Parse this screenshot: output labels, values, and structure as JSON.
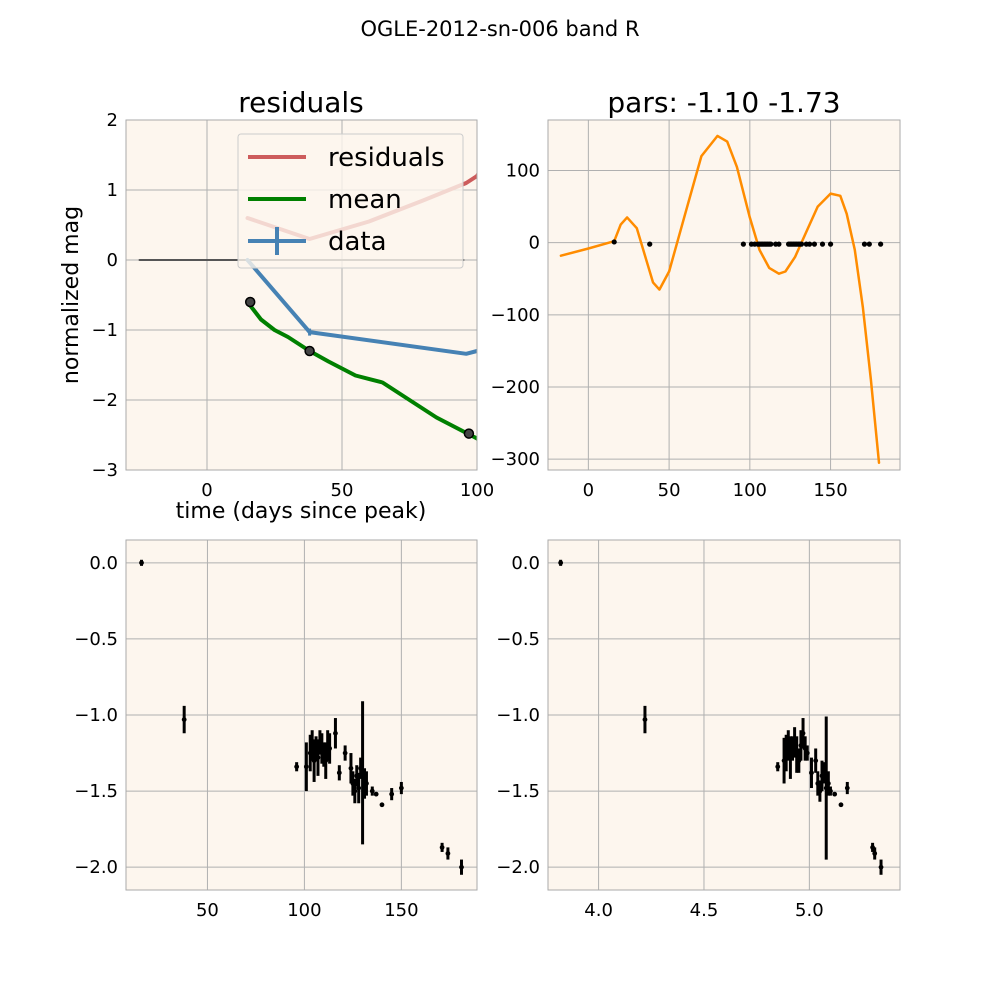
{
  "figure_title": "OGLE-2012-sn-006 band R",
  "colors": {
    "panel_bg": "#fdf6ee",
    "grid": "#b0b0b0",
    "spine": "#aaaaaa",
    "residuals": "#cd5c5c",
    "mean": "#008000",
    "data": "#4682b4",
    "fit": "#ff8c00",
    "zero_line": "#555555",
    "points": "#000000"
  },
  "chart_data": [
    {
      "type": "line",
      "title": "residuals",
      "xlabel": "time (days since peak)",
      "ylabel": "normalized mag",
      "xlim": [
        -30,
        100
      ],
      "ylim": [
        -3,
        2
      ],
      "xticks": [
        0,
        50,
        100
      ],
      "yticks": [
        -3,
        -2,
        -1,
        0,
        1,
        2
      ],
      "grid": true,
      "legend": {
        "position": "top-right",
        "entries": [
          "residuals",
          "mean",
          "data"
        ]
      },
      "series": [
        {
          "name": "residuals",
          "x": [
            15,
            38,
            60,
            80,
            96,
            100,
            105
          ],
          "y": [
            0.6,
            0.3,
            0.55,
            0.85,
            1.1,
            1.2,
            1.5
          ]
        },
        {
          "name": "mean",
          "x": [
            15,
            20,
            25,
            30,
            38,
            45,
            55,
            65,
            75,
            85,
            95,
            100,
            105
          ],
          "y": [
            -0.6,
            -0.85,
            -1.0,
            -1.1,
            -1.3,
            -1.45,
            -1.65,
            -1.75,
            -2.0,
            -2.25,
            -2.45,
            -2.55,
            -2.7
          ]
        },
        {
          "name": "data",
          "x": [
            15,
            38,
            96,
            105
          ],
          "y": [
            0.0,
            -1.03,
            -1.34,
            -1.25
          ],
          "yerr": [
            0.0,
            0.05,
            0.02,
            0.02
          ]
        }
      ],
      "zero_line": {
        "x": [
          -25,
          95
        ],
        "y": [
          0,
          0
        ]
      },
      "markers": [
        {
          "x": 16,
          "y": -0.6
        },
        {
          "x": 38,
          "y": -1.3
        },
        {
          "x": 97,
          "y": -2.48
        }
      ]
    },
    {
      "type": "line",
      "title": "pars: -1.10 -1.73",
      "xlim": [
        -25,
        193
      ],
      "ylim": [
        -315,
        170
      ],
      "xticks": [
        0,
        50,
        100,
        150
      ],
      "yticks": [
        -300,
        -200,
        -100,
        0,
        100
      ],
      "grid": true,
      "series": [
        {
          "name": "",
          "x": [
            -17,
            0,
            16,
            20,
            24,
            30,
            36,
            40,
            44,
            50,
            60,
            70,
            80,
            86,
            92,
            100,
            106,
            112,
            118,
            122,
            128,
            135,
            142,
            150,
            156,
            160,
            165,
            170,
            175,
            180
          ],
          "y": [
            -18,
            -8,
            2,
            25,
            35,
            20,
            -25,
            -55,
            -65,
            -40,
            40,
            120,
            148,
            140,
            105,
            35,
            -10,
            -35,
            -43,
            -40,
            -20,
            15,
            50,
            68,
            65,
            40,
            -10,
            -90,
            -190,
            -305
          ]
        },
        {
          "name": "",
          "type": "scatter",
          "x": [
            16,
            38,
            96,
            101,
            103,
            105,
            106,
            107,
            108,
            109,
            110,
            111,
            112,
            113,
            116,
            118,
            124,
            125,
            126,
            127,
            128,
            129,
            130,
            131,
            132,
            135,
            137,
            140,
            145,
            150,
            171,
            174,
            181
          ],
          "y": [
            1,
            -2,
            -2,
            -2,
            -2,
            -2,
            -2,
            -2,
            -2,
            -2,
            -2,
            -2,
            -2,
            -2,
            -2,
            -2,
            -2,
            -2,
            -2,
            -2,
            -2,
            -2,
            -2,
            -2,
            -2,
            -2,
            -2,
            -2,
            -2,
            -2,
            -2,
            -2,
            -2
          ]
        }
      ]
    },
    {
      "type": "scatter",
      "xlim": [
        8,
        189
      ],
      "ylim": [
        -2.15,
        0.15
      ],
      "xticks": [
        50,
        100,
        150
      ],
      "yticks": [
        0.0,
        -0.5,
        -1.0,
        -1.5,
        -2.0
      ],
      "grid": true,
      "series": [
        {
          "name": "",
          "x": [
            16,
            38,
            96,
            101,
            103,
            104,
            105,
            106,
            107,
            108,
            109,
            110,
            111,
            112,
            113,
            116,
            118,
            121,
            124,
            125,
            126,
            127,
            128,
            129,
            130,
            131,
            132,
            135,
            137,
            140,
            145,
            150,
            171,
            174,
            181
          ],
          "y": [
            0.0,
            -1.03,
            -1.34,
            -1.34,
            -1.25,
            -1.2,
            -1.3,
            -1.22,
            -1.28,
            -1.18,
            -1.22,
            -1.26,
            -1.3,
            -1.2,
            -1.22,
            -1.12,
            -1.38,
            -1.25,
            -1.35,
            -1.45,
            -1.5,
            -1.4,
            -1.48,
            -1.35,
            -1.38,
            -1.45,
            -1.45,
            -1.5,
            -1.52,
            -1.59,
            -1.52,
            -1.48,
            -1.87,
            -1.91,
            -2.0
          ],
          "yerr": [
            0.02,
            0.09,
            0.03,
            0.16,
            0.12,
            0.1,
            0.14,
            0.08,
            0.12,
            0.08,
            0.1,
            0.08,
            0.12,
            0.1,
            0.1,
            0.1,
            0.05,
            0.05,
            0.1,
            0.08,
            0.08,
            0.07,
            0.1,
            0.07,
            0.47,
            0.1,
            0.08,
            0.03,
            0.01,
            0.01,
            0.04,
            0.04,
            0.03,
            0.04,
            0.05
          ]
        }
      ]
    },
    {
      "type": "scatter",
      "xlim": [
        3.76,
        5.43
      ],
      "ylim": [
        -2.15,
        0.15
      ],
      "xticks": [
        4.0,
        4.5,
        5.0
      ],
      "yticks": [
        0.0,
        -0.5,
        -1.0,
        -1.5,
        -2.0
      ],
      "grid": true,
      "series": [
        {
          "name": "",
          "x": [
            3.82,
            4.22,
            4.85,
            4.88,
            4.89,
            4.9,
            4.91,
            4.92,
            4.93,
            4.94,
            4.95,
            4.96,
            4.97,
            4.98,
            4.99,
            5.01,
            5.03,
            5.04,
            5.05,
            5.06,
            5.07,
            5.08,
            5.09,
            5.1,
            5.12,
            5.15,
            5.18,
            5.3,
            5.31,
            5.34
          ],
          "y": [
            0.0,
            -1.03,
            -1.34,
            -1.3,
            -1.25,
            -1.2,
            -1.28,
            -1.22,
            -1.18,
            -1.26,
            -1.3,
            -1.2,
            -1.12,
            -1.22,
            -1.25,
            -1.38,
            -1.3,
            -1.45,
            -1.5,
            -1.4,
            -1.38,
            -1.48,
            -1.45,
            -1.5,
            -1.52,
            -1.59,
            -1.48,
            -1.87,
            -1.91,
            -2.0
          ],
          "yerr": [
            0.02,
            0.09,
            0.03,
            0.15,
            0.12,
            0.1,
            0.14,
            0.08,
            0.1,
            0.12,
            0.08,
            0.1,
            0.1,
            0.08,
            0.05,
            0.1,
            0.08,
            0.08,
            0.07,
            0.1,
            0.07,
            0.47,
            0.08,
            0.03,
            0.01,
            0.01,
            0.04,
            0.03,
            0.04,
            0.05
          ]
        }
      ]
    }
  ]
}
